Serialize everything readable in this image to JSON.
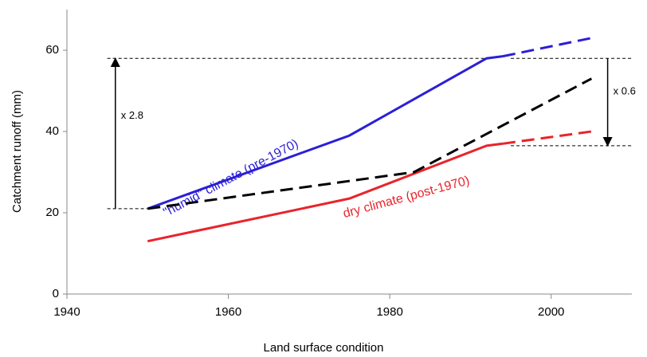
{
  "chart_data": {
    "type": "line",
    "x_label": "Land surface condition",
    "y_label": "Catchment runoff (mm)",
    "xlim": [
      1940,
      2010
    ],
    "xticks": [
      1940,
      1960,
      1980,
      2000
    ],
    "ylim": [
      0,
      70
    ],
    "yticks": [
      0,
      20,
      40,
      60
    ],
    "series": [
      {
        "name": "\"humid\" climate  (pre-1970)",
        "color": "#2b1fd6",
        "dash": false,
        "x": [
          1950,
          1975,
          1992,
          1994
        ],
        "values": [
          21,
          39,
          58,
          58.5
        ]
      },
      {
        "color": "#2b1fd6",
        "dash": true,
        "x": [
          1994,
          2005
        ],
        "values": [
          58.5,
          63
        ]
      },
      {
        "name": "dry climate (post-1970)",
        "color": "#e8242b",
        "dash": false,
        "x": [
          1950,
          1975,
          1992,
          1994
        ],
        "values": [
          13,
          23.5,
          36.5,
          37
        ]
      },
      {
        "color": "#e8242b",
        "dash": true,
        "x": [
          1994,
          2005
        ],
        "values": [
          37,
          40
        ]
      },
      {
        "color": "#000000",
        "dash": true,
        "x": [
          1950,
          1983,
          2005
        ],
        "values": [
          21,
          30,
          53
        ]
      }
    ],
    "reference_lines": [
      {
        "y": 58,
        "x": [
          1945,
          1992
        ]
      },
      {
        "y": 21,
        "x": [
          1945,
          1950
        ]
      },
      {
        "y": 58,
        "x": [
          1995,
          2010
        ]
      },
      {
        "y": 36.5,
        "x": [
          1995,
          2010
        ]
      }
    ],
    "arrows": [
      {
        "x": 1946,
        "y": [
          21,
          58
        ],
        "label": "x 2.8"
      },
      {
        "x": 2007,
        "y": [
          58,
          36.5
        ],
        "label": "x 0.6"
      }
    ]
  }
}
